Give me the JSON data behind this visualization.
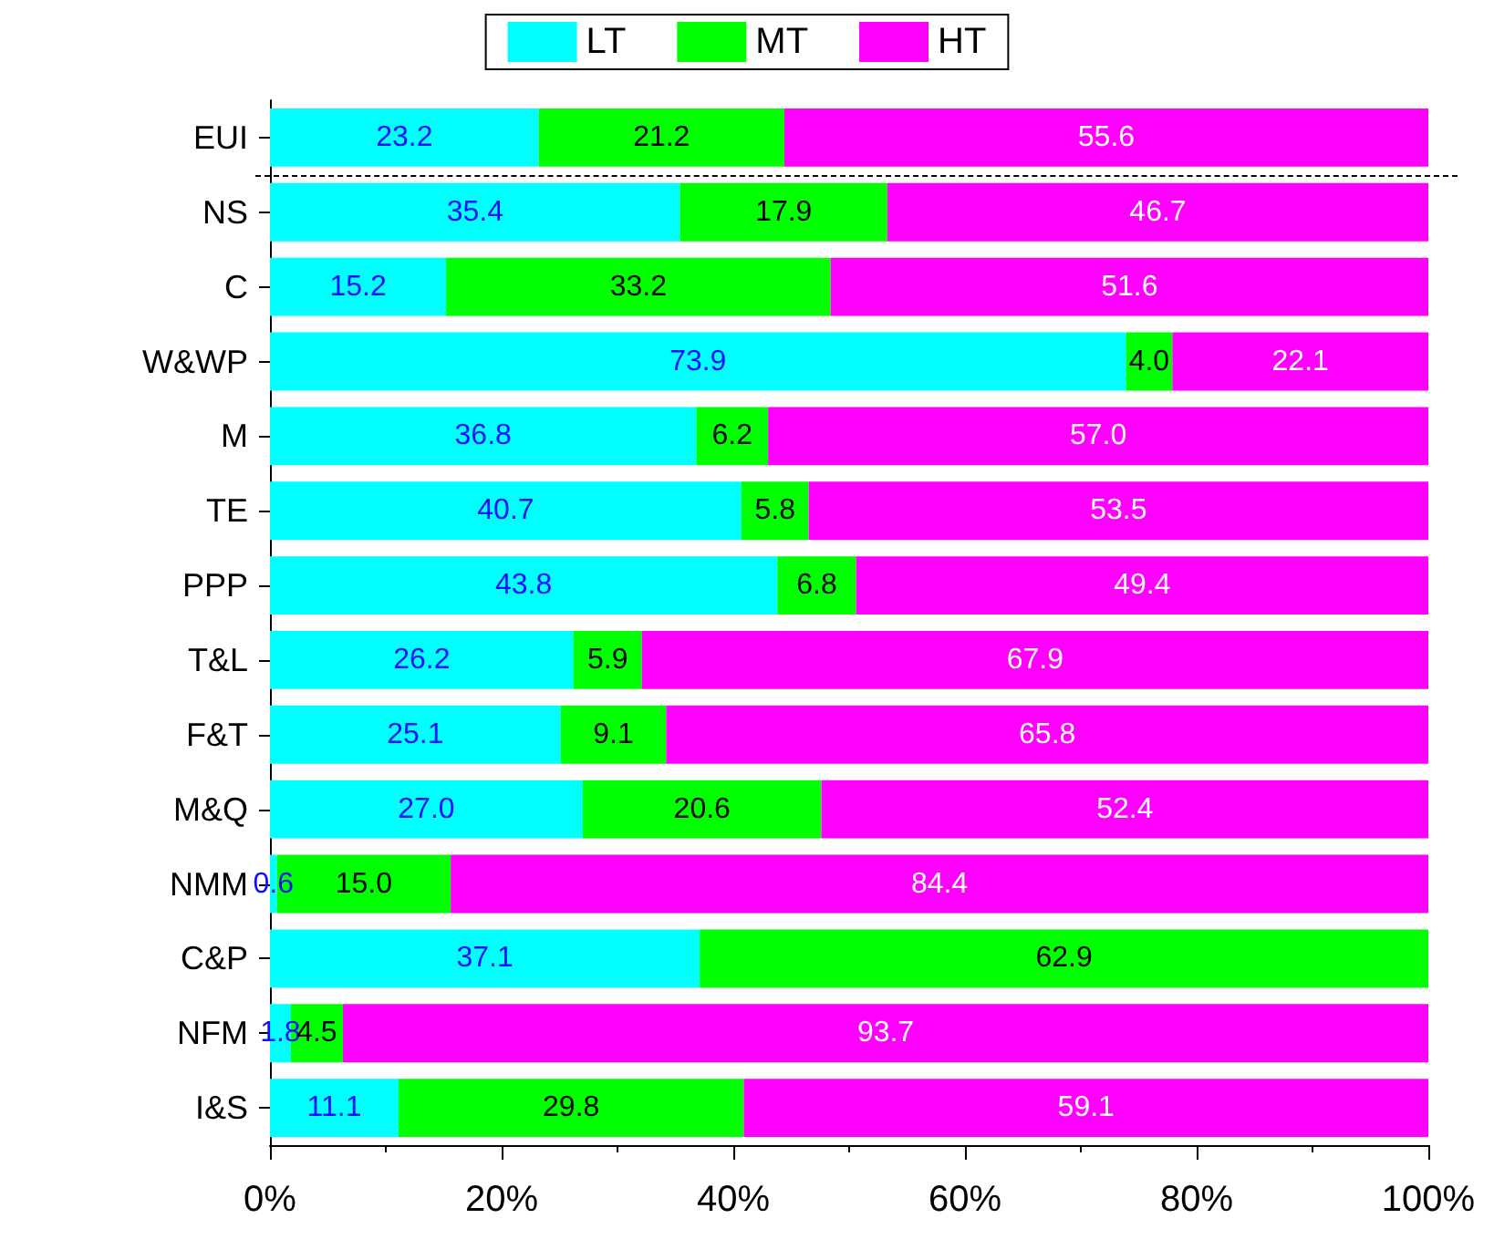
{
  "chart_data": {
    "type": "bar",
    "orientation": "horizontal",
    "stacked": true,
    "grid": false,
    "legend": "top",
    "categories": [
      "EUI",
      "NS",
      "C",
      "W&WP",
      "M",
      "TE",
      "PPP",
      "T&L",
      "F&T",
      "M&Q",
      "NMM",
      "C&P",
      "NFM",
      "I&S"
    ],
    "series": [
      {
        "name": "LT",
        "color": "#00ffff",
        "values": [
          23.2,
          35.4,
          15.2,
          73.9,
          36.8,
          40.7,
          43.8,
          26.2,
          25.1,
          27.0,
          0.6,
          37.1,
          1.8,
          11.1
        ],
        "value_labels": [
          "23.2",
          "35.4",
          "15.2",
          "73.9",
          "36.8",
          "40.7",
          "43.8",
          "26.2",
          "25.1",
          "27.0",
          "0.6",
          "37.1",
          "1.8",
          "11.1"
        ]
      },
      {
        "name": "MT",
        "color": "#00ff00",
        "values": [
          21.2,
          17.9,
          33.2,
          4.0,
          6.2,
          5.8,
          6.8,
          5.9,
          9.1,
          20.6,
          15.0,
          62.9,
          4.5,
          29.8
        ],
        "value_labels": [
          "21.2",
          "17.9",
          "33.2",
          "4.0",
          "6.2",
          "5.8",
          "6.8",
          "5.9",
          "9.1",
          "20.6",
          "15.0",
          "62.9",
          "4.5",
          "29.8"
        ]
      },
      {
        "name": "HT",
        "color": "#ff00ff",
        "values": [
          55.6,
          46.7,
          51.6,
          22.1,
          57.0,
          53.5,
          49.4,
          67.9,
          65.8,
          52.4,
          84.4,
          null,
          93.7,
          59.1
        ],
        "value_labels": [
          "55.6",
          "46.7",
          "51.6",
          "22.1",
          "57.0",
          "53.5",
          "49.4",
          "67.9",
          "65.8",
          "52.4",
          "84.4",
          null,
          "93.7",
          "59.1"
        ]
      }
    ],
    "xlim": [
      0,
      100
    ],
    "xticks": [
      {
        "value": 0,
        "label": "0%"
      },
      {
        "value": 20,
        "label": "20%"
      },
      {
        "value": 40,
        "label": "40%"
      },
      {
        "value": 60,
        "label": "60%"
      },
      {
        "value": 80,
        "label": "80%"
      },
      {
        "value": 100,
        "label": "100%"
      }
    ]
  }
}
